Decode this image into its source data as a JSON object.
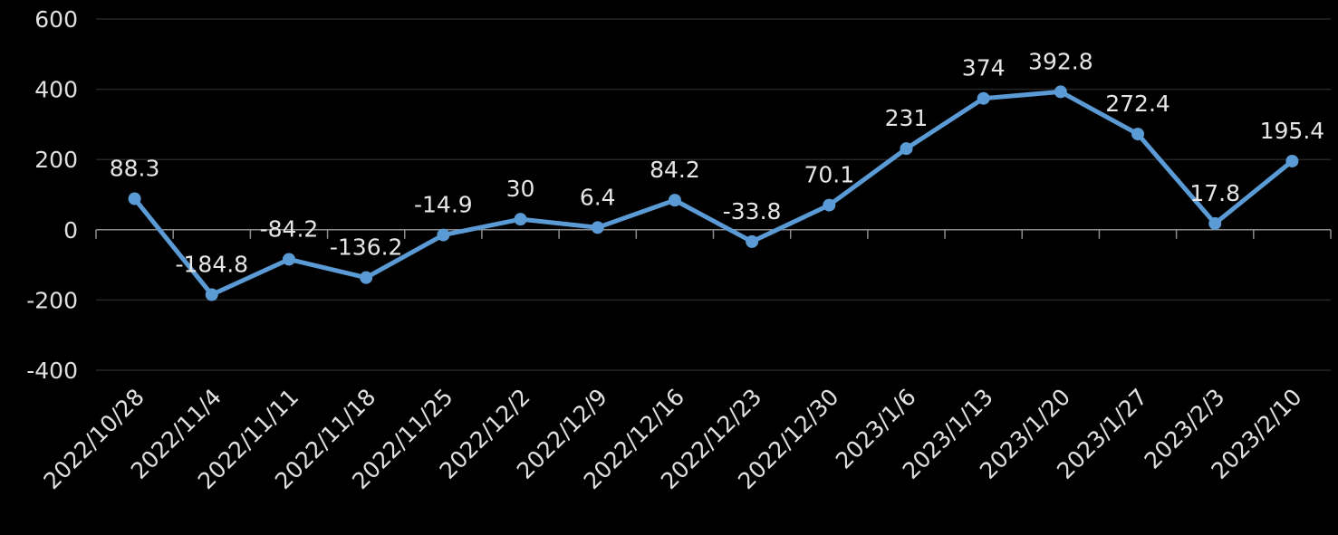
{
  "chart_data": {
    "type": "line",
    "categories": [
      "2022/10/28",
      "2022/11/4",
      "2022/11/11",
      "2022/11/18",
      "2022/11/25",
      "2022/12/2",
      "2022/12/9",
      "2022/12/16",
      "2022/12/23",
      "2022/12/30",
      "2023/1/6",
      "2023/1/13",
      "2023/1/20",
      "2023/1/27",
      "2023/2/3",
      "2023/2/10"
    ],
    "series": [
      {
        "values": [
          88.3,
          -184.8,
          -84.2,
          -136.2,
          -14.9,
          30,
          6.4,
          84.2,
          -33.8,
          70.1,
          231,
          374,
          392.8,
          272.4,
          17.8,
          195.4
        ]
      }
    ],
    "data_labels": [
      "88.3",
      "-184.8",
      "-84.2",
      "-136.2",
      "-14.9",
      "30",
      "6.4",
      "84.2",
      "-33.8",
      "70.1",
      "231",
      "374",
      "392.8",
      "272.4",
      "17.8",
      "195.4"
    ],
    "ylim": [
      -400,
      600
    ],
    "yticks": [
      "600",
      "400",
      "200",
      "0",
      "-200",
      "-400"
    ],
    "ytick_values": [
      600,
      400,
      200,
      0,
      -200,
      -400
    ],
    "grid": true,
    "legend": "none",
    "colors": {
      "line": "#5b9bd5",
      "background": "#000000",
      "grid": "#262626",
      "axis": "#8c8c8c",
      "text": "#e0e0e0"
    }
  }
}
